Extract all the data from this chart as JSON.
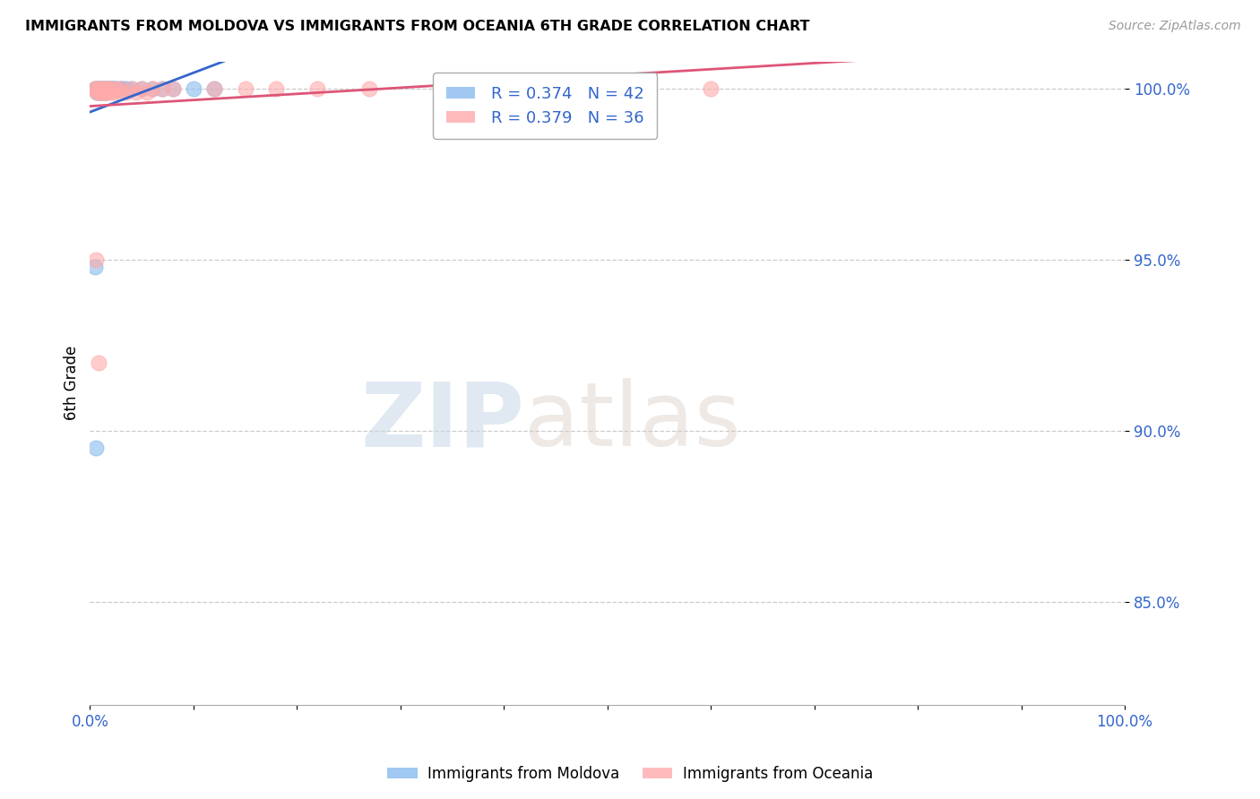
{
  "title": "IMMIGRANTS FROM MOLDOVA VS IMMIGRANTS FROM OCEANIA 6TH GRADE CORRELATION CHART",
  "source": "Source: ZipAtlas.com",
  "xlabel": "",
  "ylabel": "6th Grade",
  "xlim": [
    0.0,
    1.0
  ],
  "ylim": [
    0.82,
    1.008
  ],
  "x_ticks": [
    0.0,
    0.1,
    0.2,
    0.3,
    0.4,
    0.5,
    0.6,
    0.7,
    0.8,
    0.9,
    1.0
  ],
  "x_tick_labels": [
    "0.0%",
    "",
    "",
    "",
    "",
    "",
    "",
    "",
    "",
    "",
    "100.0%"
  ],
  "y_ticks": [
    0.85,
    0.9,
    0.95,
    1.0
  ],
  "y_tick_labels": [
    "85.0%",
    "90.0%",
    "95.0%",
    "100.0%"
  ],
  "moldova_color": "#88bbee",
  "oceania_color": "#ffaaaa",
  "moldova_line_color": "#3366cc",
  "oceania_line_color": "#dd5577",
  "legend_label_1": "R = 0.374   N = 42",
  "legend_label_2": "R = 0.379   N = 36",
  "moldova_x": [
    0.005,
    0.006,
    0.007,
    0.007,
    0.008,
    0.008,
    0.009,
    0.009,
    0.01,
    0.01,
    0.011,
    0.011,
    0.012,
    0.012,
    0.013,
    0.013,
    0.014,
    0.014,
    0.015,
    0.015,
    0.016,
    0.017,
    0.018,
    0.019,
    0.02,
    0.021,
    0.022,
    0.023,
    0.025,
    0.027,
    0.03,
    0.032,
    0.035,
    0.04,
    0.05,
    0.06,
    0.07,
    0.08,
    0.1,
    0.12,
    0.005,
    0.006
  ],
  "moldova_y": [
    1.0,
    1.0,
    1.0,
    0.999,
    1.0,
    0.999,
    1.0,
    0.999,
    1.0,
    0.999,
    1.0,
    0.999,
    1.0,
    0.999,
    1.0,
    0.999,
    1.0,
    0.999,
    1.0,
    0.999,
    1.0,
    1.0,
    1.0,
    1.0,
    1.0,
    1.0,
    1.0,
    1.0,
    1.0,
    1.0,
    1.0,
    1.0,
    1.0,
    1.0,
    1.0,
    1.0,
    1.0,
    1.0,
    1.0,
    1.0,
    0.948,
    0.895
  ],
  "oceania_x": [
    0.005,
    0.006,
    0.007,
    0.008,
    0.009,
    0.01,
    0.011,
    0.012,
    0.013,
    0.014,
    0.015,
    0.016,
    0.017,
    0.018,
    0.019,
    0.02,
    0.022,
    0.025,
    0.028,
    0.03,
    0.035,
    0.04,
    0.045,
    0.05,
    0.055,
    0.06,
    0.07,
    0.08,
    0.12,
    0.15,
    0.18,
    0.22,
    0.006,
    0.008,
    0.27,
    0.6
  ],
  "oceania_y": [
    1.0,
    1.0,
    0.999,
    1.0,
    0.999,
    1.0,
    0.999,
    1.0,
    0.999,
    1.0,
    0.999,
    1.0,
    0.999,
    1.0,
    0.999,
    1.0,
    0.999,
    1.0,
    0.999,
    1.0,
    0.999,
    1.0,
    0.999,
    1.0,
    0.999,
    1.0,
    1.0,
    1.0,
    1.0,
    1.0,
    1.0,
    1.0,
    0.95,
    0.92,
    1.0,
    1.0
  ],
  "watermark_zip": "ZIP",
  "watermark_atlas": "atlas",
  "background_color": "#ffffff",
  "grid_color": "#cccccc"
}
